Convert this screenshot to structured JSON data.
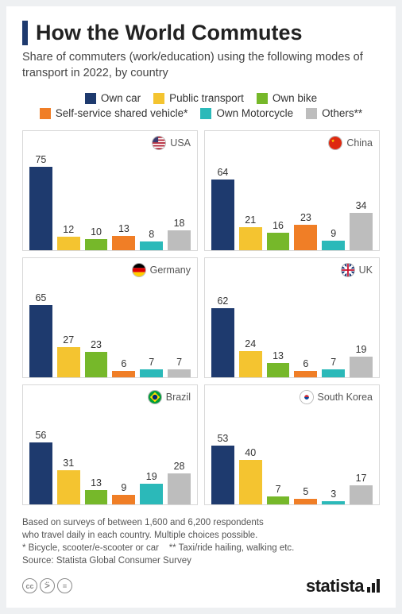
{
  "title": "How the World Commutes",
  "subtitle": "Share of commuters (work/education) using the following modes of transport in 2022, by country",
  "legend": [
    {
      "label": "Own car",
      "color": "#1e3a6e"
    },
    {
      "label": "Public transport",
      "color": "#f4c430"
    },
    {
      "label": "Own bike",
      "color": "#76b82a"
    },
    {
      "label": "Self-service shared vehicle*",
      "color": "#f07e26"
    },
    {
      "label": "Own Motorcycle",
      "color": "#2bb9b9"
    },
    {
      "label": "Others**",
      "color": "#bdbdbd"
    }
  ],
  "chart": {
    "type": "bar",
    "ymax": 80,
    "bar_gap": 6,
    "panels": [
      {
        "country": "USA",
        "flag": "us",
        "values": [
          75,
          12,
          10,
          13,
          8,
          18
        ]
      },
      {
        "country": "China",
        "flag": "cn",
        "values": [
          64,
          21,
          16,
          23,
          9,
          34
        ]
      },
      {
        "country": "Germany",
        "flag": "de",
        "values": [
          65,
          27,
          23,
          6,
          7,
          7
        ]
      },
      {
        "country": "UK",
        "flag": "uk",
        "values": [
          62,
          24,
          13,
          6,
          7,
          19
        ]
      },
      {
        "country": "Brazil",
        "flag": "br",
        "values": [
          56,
          31,
          13,
          9,
          19,
          28
        ]
      },
      {
        "country": "South Korea",
        "flag": "kr",
        "values": [
          53,
          40,
          7,
          5,
          3,
          17
        ]
      }
    ]
  },
  "notes_line1": "Based on surveys of between 1,600 and 6,200 respondents",
  "notes_line2": "who travel daily in each country. Multiple choices possible.",
  "notes_line3": "* Bicycle, scooter/e-scooter or car    ** Taxi/ride hailing, walking etc.",
  "notes_line4": "Source: Statista Global Consumer Survey",
  "brand": "statista",
  "cc": [
    "cc",
    "①",
    "="
  ]
}
